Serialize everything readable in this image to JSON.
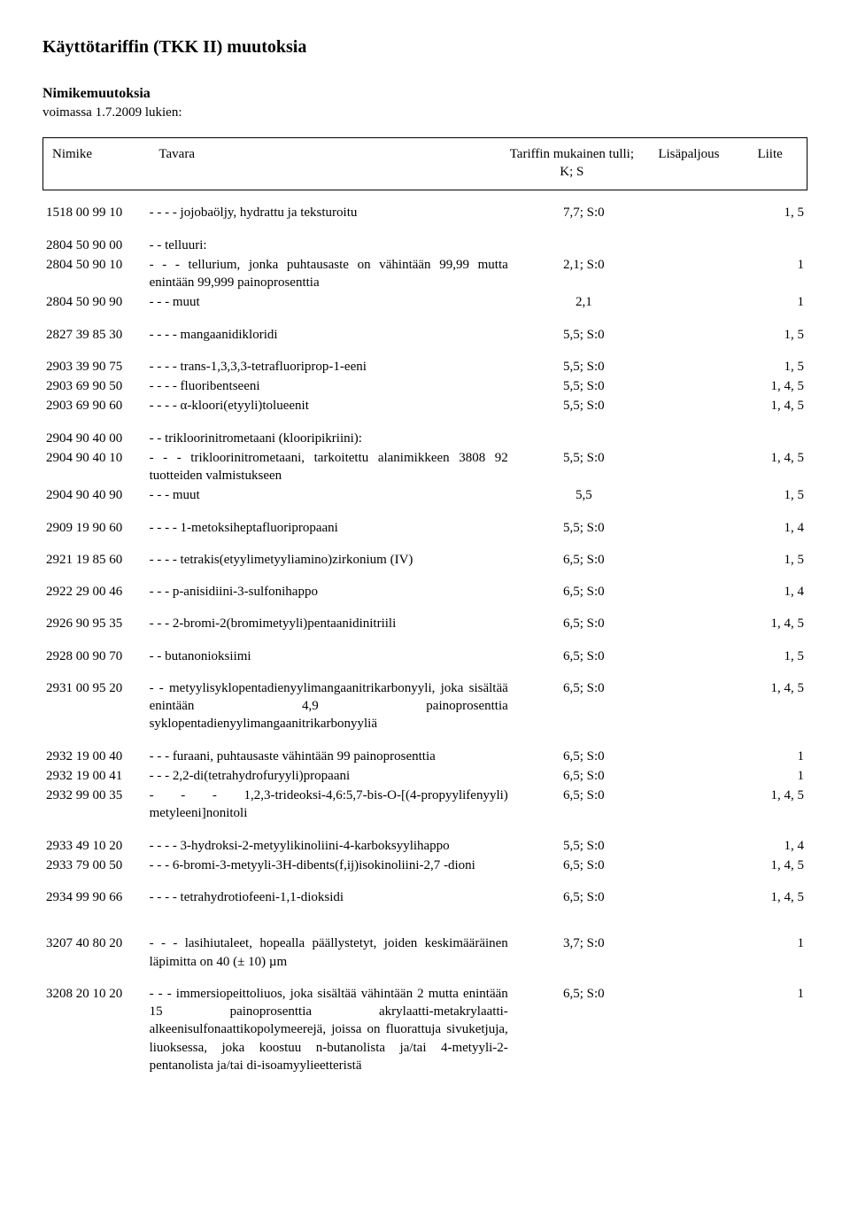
{
  "title": "Käyttötariffin (TKK II) muutoksia",
  "subtitle": "Nimikemuutoksia",
  "subnote": "voimassa 1.7.2009 lukien:",
  "header": {
    "nimike": "Nimike",
    "tavara": "Tavara",
    "tariff_line1": "Tariffin mukainen tulli;",
    "tariff_line2": "K; S",
    "lisa": "Lisäpaljous",
    "liite": "Liite"
  },
  "rows": [
    {
      "code": "1518 00 99 10",
      "desc": "- - - -  jojobaöljy, hydrattu ja teksturoitu",
      "tariff": "7,7; S:0",
      "liite": "1, 5",
      "gap_before": "group"
    },
    {
      "code": "2804 50 90 00",
      "desc": "- -  telluuri:",
      "gap_before": "group"
    },
    {
      "code": "2804 50 90 10",
      "desc": "- - -  tellurium, jonka puhtausaste on vähintään 99,99 mutta enintään 99,999 painoprosenttia",
      "tariff": "2,1; S:0",
      "liite": "1"
    },
    {
      "code": "2804 50 90 90",
      "desc": "- - -  muut",
      "tariff": "2,1",
      "liite": "1"
    },
    {
      "code": "2827 39 85 30",
      "desc": "- - - -  mangaanidikloridi",
      "tariff": "5,5; S:0",
      "liite": "1, 5",
      "gap_before": "group"
    },
    {
      "code": "2903 39 90 75",
      "desc": "- - - -  trans-1,3,3,3-tetrafluoriprop-1-eeni",
      "tariff": "5,5; S:0",
      "liite": "1, 5",
      "gap_before": "group"
    },
    {
      "code": "2903 69 90 50",
      "desc": "- - - -  fluoribentseeni",
      "tariff": "5,5; S:0",
      "liite": "1, 4, 5"
    },
    {
      "code": "2903 69 90 60",
      "desc": "- - - -  α-kloori(etyyli)tolueenit",
      "tariff": "5,5; S:0",
      "liite": "1, 4, 5"
    },
    {
      "code": "2904 90 40 00",
      "desc": "- -  trikloorinitrometaani (klooripikriini):",
      "gap_before": "group"
    },
    {
      "code": "2904 90 40 10",
      "desc": "- - -  trikloorinitrometaani, tarkoitettu alanimikkeen 3808 92 tuotteiden valmistukseen",
      "tariff": "5,5; S:0",
      "liite": "1, 4, 5"
    },
    {
      "code": "2904 90 40 90",
      "desc": "- - -  muut",
      "tariff": "5,5",
      "liite": "1, 5"
    },
    {
      "code": "2909 19 90 60",
      "desc": "- - - -  1-metoksiheptafluoripropaani",
      "tariff": "5,5; S:0",
      "liite": "1, 4",
      "gap_before": "group"
    },
    {
      "code": "2921 19 85 60",
      "desc": "- - - -  tetrakis(etyylimetyyliamino)zirkonium (IV)",
      "tariff": "6,5; S:0",
      "liite": "1, 5",
      "gap_before": "group"
    },
    {
      "code": "2922 29 00 46",
      "desc": "- - -  p-anisidiini-3-sulfonihappo",
      "tariff": "6,5; S:0",
      "liite": "1, 4",
      "gap_before": "group"
    },
    {
      "code": "2926 90 95 35",
      "desc": "- - -  2-bromi-2(bromimetyyli)pentaanidinitriili",
      "tariff": "6,5; S:0",
      "liite": "1, 4, 5",
      "gap_before": "group"
    },
    {
      "code": "2928 00 90 70",
      "desc": "- -  butanonioksiimi",
      "tariff": "6,5; S:0",
      "liite": "1, 5",
      "gap_before": "group"
    },
    {
      "code": "2931 00 95 20",
      "desc": "- -  metyylisyklopentadienyylimangaanitrikarbonyyli, joka sisältää enintään 4,9 painoprosenttia syklopentadienyylimangaanitrikarbonyyliä",
      "tariff": "6,5; S:0",
      "liite": "1, 4, 5",
      "gap_before": "group"
    },
    {
      "code": "2932 19 00 40",
      "desc": "- - -  furaani, puhtausaste vähintään 99 painoprosenttia",
      "tariff": "6,5; S:0",
      "liite": "1",
      "gap_before": "group"
    },
    {
      "code": "2932 19 00 41",
      "desc": "- - -  2,2-di(tetrahydrofuryyli)propaani",
      "tariff": "6,5; S:0",
      "liite": "1"
    },
    {
      "code": "2932 99 00 35",
      "desc": "- - -  1,2,3-trideoksi-4,6:5,7-bis-O-[(4-propyylifenyyli) metyleeni]nonitoli",
      "tariff": "6,5; S:0",
      "liite": "1, 4, 5"
    },
    {
      "code": "2933 49 10 20",
      "desc": "- - - -  3-hydroksi-2-metyylikinoliini-4-karboksyylihappo",
      "tariff": "5,5; S:0",
      "liite": "1, 4",
      "gap_before": "group"
    },
    {
      "code": "2933 79 00 50",
      "desc": "- - -  6-bromi-3-metyyli-3H-dibents(f,ij)isokinoliini-2,7 -dioni",
      "tariff": "6,5; S:0",
      "liite": "1, 4, 5"
    },
    {
      "code": "2934 99 90 66",
      "desc": "- - - -  tetrahydrotiofeeni-1,1-dioksidi",
      "tariff": "6,5; S:0",
      "liite": "1, 4, 5",
      "gap_before": "group"
    },
    {
      "code": "3207 40 80 20",
      "desc": "- - -  lasihiutaleet, hopealla päällystetyt, joiden keskimääräinen läpimitta on 40 (± 10) µm",
      "tariff": "3,7; S:0",
      "liite": "1",
      "gap_before": "big"
    },
    {
      "code": "3208 20 10 20",
      "desc": "- - -  immersiopeittoliuos, joka sisältää vähintään 2 mutta enintään 15 painoprosenttia akrylaatti-metakrylaatti-alkeenisulfonaattikopolymeerejä, joissa on fluorattuja sivuketjuja, liuoksessa, joka koostuu n-butanolista ja/tai 4-metyyli-2-pentanolista ja/tai di-isoamyylieetteristä",
      "tariff": "6,5; S:0",
      "liite": "1",
      "gap_before": "group"
    }
  ]
}
